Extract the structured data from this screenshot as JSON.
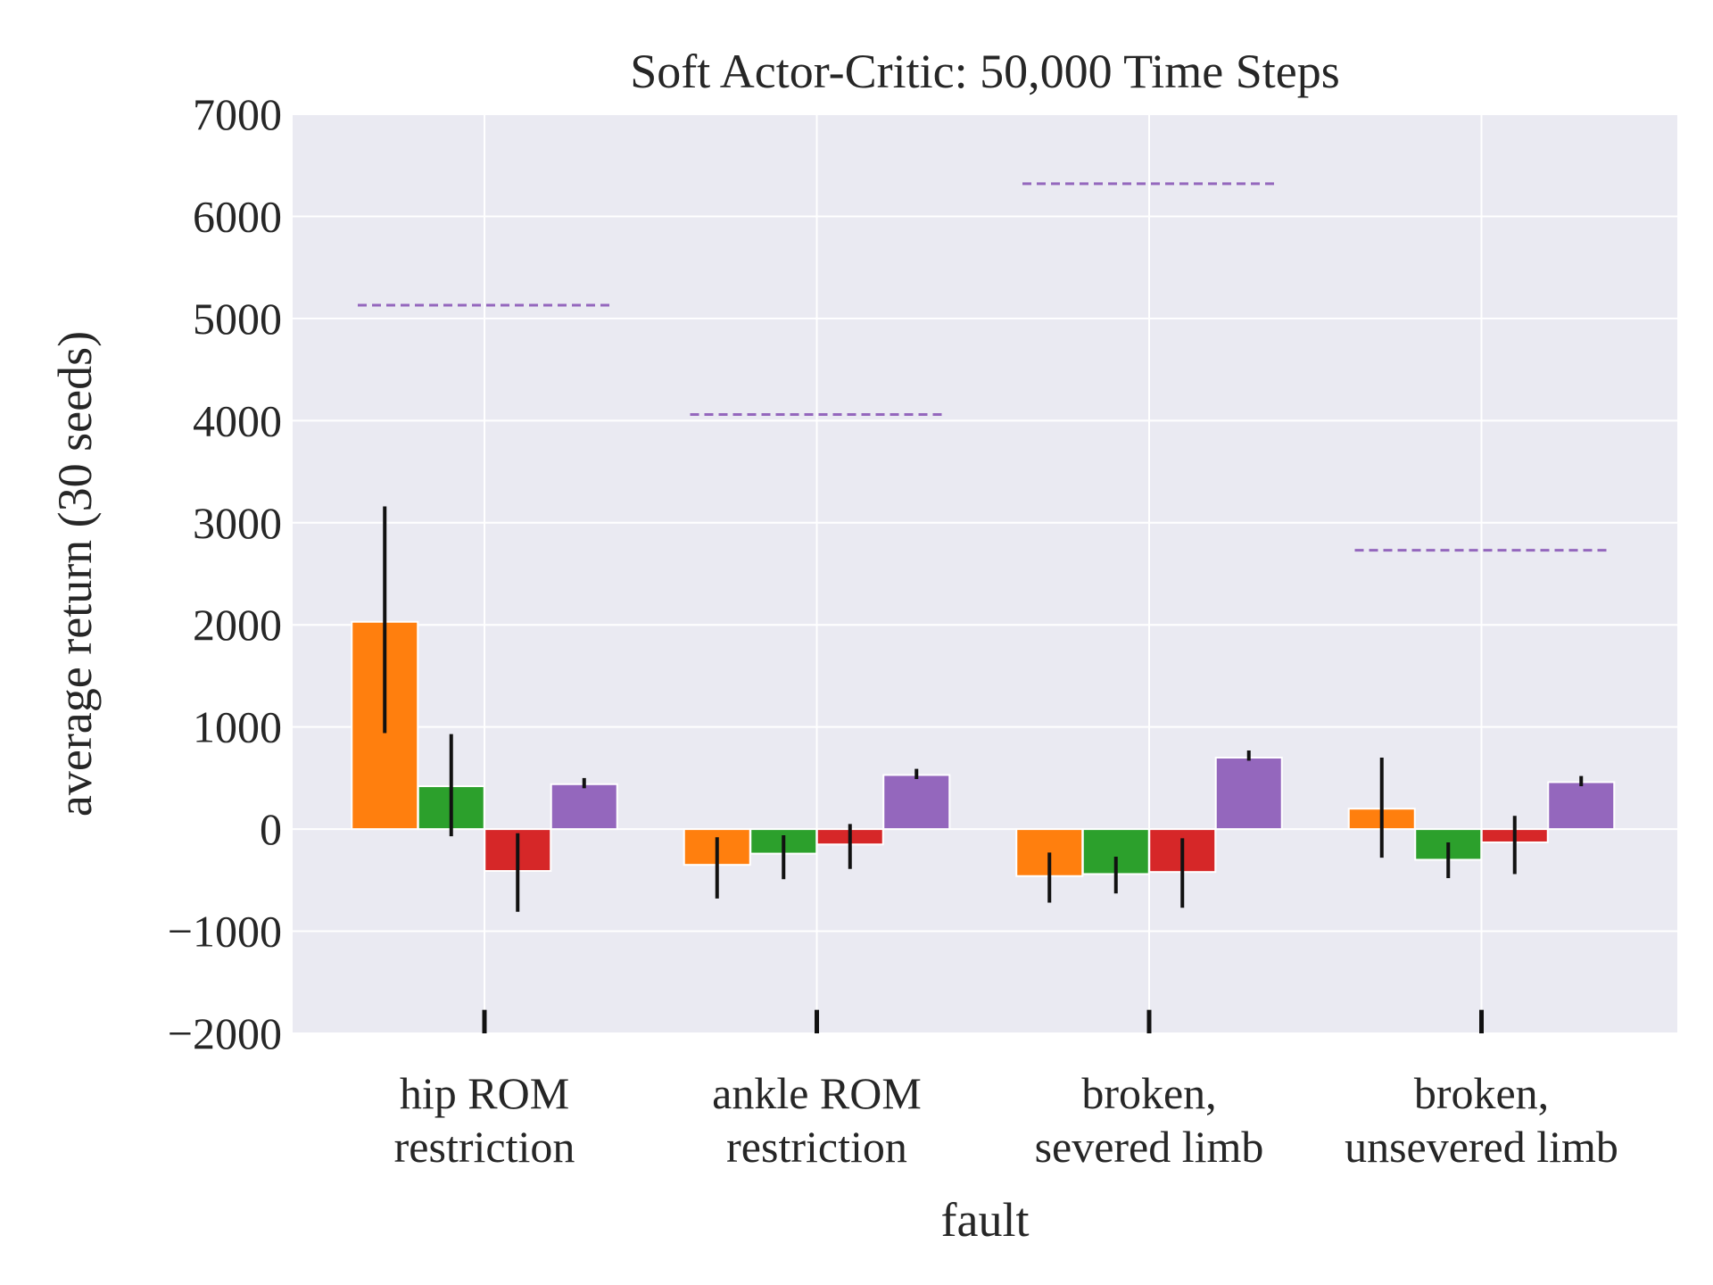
{
  "chart_data": {
    "type": "bar",
    "title": "Soft Actor-Critic: 50,000 Time Steps",
    "xlabel": "fault",
    "ylabel": "average return (30 seeds)",
    "ylim": [
      -2000,
      7000
    ],
    "yticks": [
      -2000,
      -1000,
      0,
      1000,
      2000,
      3000,
      4000,
      5000,
      6000,
      7000
    ],
    "ytick_labels": [
      "−2000",
      "−1000",
      "0",
      "1000",
      "2000",
      "3000",
      "4000",
      "5000",
      "6000",
      "7000"
    ],
    "grid": true,
    "categories": [
      [
        "hip ROM",
        "restriction"
      ],
      [
        "ankle ROM",
        "restriction"
      ],
      [
        "broken,",
        "severed limb"
      ],
      [
        "broken,",
        "unsevered limb"
      ]
    ],
    "series": [
      {
        "color": "#ff7f0e",
        "values": [
          2030,
          -350,
          -460,
          200
        ],
        "err_low": [
          940,
          -680,
          -720,
          -280
        ],
        "err_high": [
          3160,
          -80,
          -230,
          700
        ]
      },
      {
        "color": "#2ca02c",
        "values": [
          420,
          -240,
          -440,
          -300
        ],
        "err_low": [
          -70,
          -490,
          -630,
          -480
        ],
        "err_high": [
          930,
          -60,
          -270,
          -130
        ]
      },
      {
        "color": "#d62728",
        "values": [
          -410,
          -150,
          -420,
          -130
        ],
        "err_low": [
          -810,
          -390,
          -770,
          -440
        ],
        "err_high": [
          -40,
          50,
          -90,
          130
        ]
      },
      {
        "color": "#9467bd",
        "values": [
          440,
          530,
          700,
          460
        ],
        "err_low": [
          400,
          490,
          670,
          420
        ],
        "err_high": [
          500,
          590,
          770,
          520
        ]
      }
    ],
    "reference_lines": {
      "color": "#9467bd",
      "style": "dashed",
      "values": [
        5130,
        4060,
        6320,
        2730
      ]
    },
    "extra_marks": {
      "color": "#111111",
      "y_range": [
        -2000,
        -1770
      ]
    }
  }
}
